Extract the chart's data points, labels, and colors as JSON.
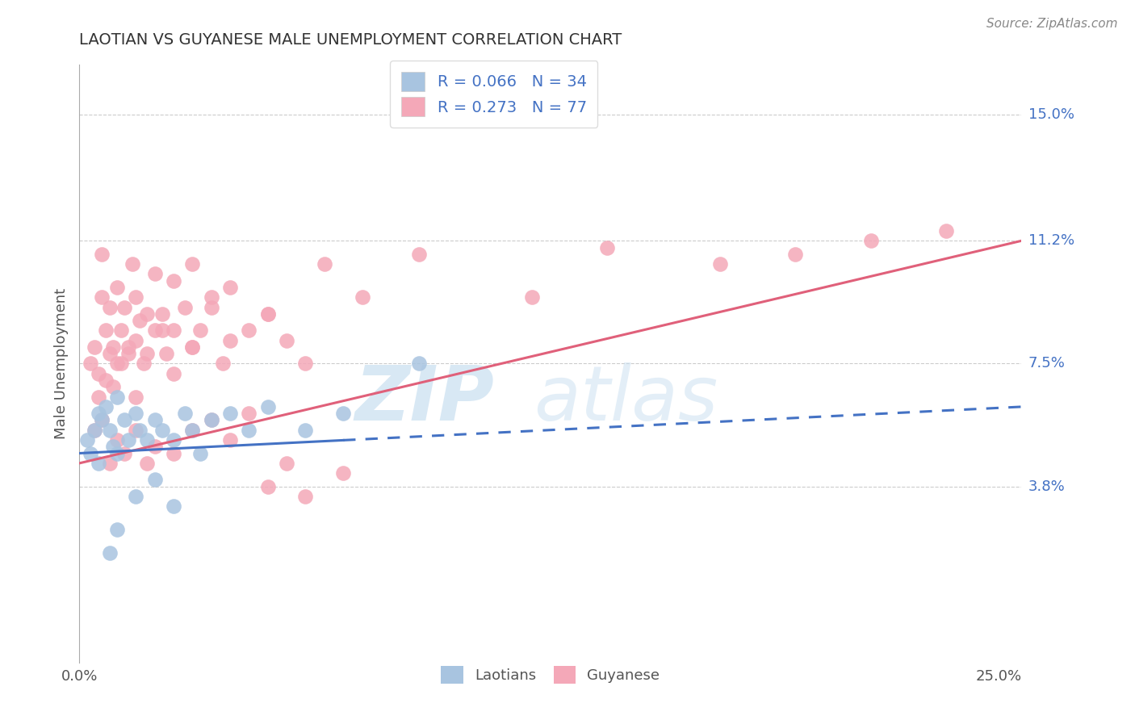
{
  "title": "LAOTIAN VS GUYANESE MALE UNEMPLOYMENT CORRELATION CHART",
  "source": "Source: ZipAtlas.com",
  "ylabel": "Male Unemployment",
  "ytick_labels": [
    "3.8%",
    "7.5%",
    "11.2%",
    "15.0%"
  ],
  "ytick_values": [
    3.8,
    7.5,
    11.2,
    15.0
  ],
  "xlim": [
    0.0,
    25.0
  ],
  "ylim": [
    -1.5,
    16.5
  ],
  "laotian_R": 0.066,
  "laotian_N": 34,
  "guyanese_R": 0.273,
  "guyanese_N": 77,
  "laotian_color": "#a8c4e0",
  "guyanese_color": "#f4a8b8",
  "laotian_line_color": "#4472c4",
  "guyanese_line_color": "#e0607a",
  "laotian_line_solid_end": 7.0,
  "guyanese_line_solid_end": 25.0,
  "laotian_line_start_y": 4.8,
  "laotian_line_end_y": 6.2,
  "guyanese_line_start_y": 4.5,
  "guyanese_line_end_y": 11.2,
  "laotian_x": [
    0.2,
    0.3,
    0.4,
    0.5,
    0.5,
    0.6,
    0.7,
    0.8,
    0.9,
    1.0,
    1.0,
    1.2,
    1.3,
    1.5,
    1.6,
    1.8,
    2.0,
    2.2,
    2.5,
    2.8,
    3.0,
    3.5,
    4.0,
    4.5,
    5.0,
    6.0,
    7.0,
    9.0,
    3.2,
    2.0,
    1.5,
    1.0,
    0.8,
    2.5
  ],
  "laotian_y": [
    5.2,
    4.8,
    5.5,
    6.0,
    4.5,
    5.8,
    6.2,
    5.5,
    5.0,
    6.5,
    4.8,
    5.8,
    5.2,
    6.0,
    5.5,
    5.2,
    5.8,
    5.5,
    5.2,
    6.0,
    5.5,
    5.8,
    6.0,
    5.5,
    6.2,
    5.5,
    6.0,
    7.5,
    4.8,
    4.0,
    3.5,
    2.5,
    1.8,
    3.2
  ],
  "guyanese_x": [
    0.3,
    0.4,
    0.5,
    0.6,
    0.6,
    0.7,
    0.8,
    0.8,
    0.9,
    1.0,
    1.0,
    1.1,
    1.2,
    1.3,
    1.4,
    1.5,
    1.5,
    1.6,
    1.7,
    1.8,
    2.0,
    2.0,
    2.2,
    2.3,
    2.5,
    2.5,
    2.8,
    3.0,
    3.0,
    3.2,
    3.5,
    3.8,
    4.0,
    4.5,
    5.0,
    5.5,
    6.0,
    0.5,
    0.7,
    0.9,
    1.1,
    1.3,
    1.5,
    1.8,
    2.2,
    2.5,
    3.0,
    3.5,
    4.0,
    5.0,
    6.5,
    7.5,
    9.0,
    12.0,
    14.0,
    17.0,
    19.0,
    21.0,
    23.0,
    0.4,
    0.6,
    0.8,
    1.0,
    1.2,
    1.5,
    1.8,
    2.0,
    2.5,
    3.0,
    3.5,
    4.0,
    4.5,
    5.0,
    5.5,
    6.0,
    7.0
  ],
  "guyanese_y": [
    7.5,
    8.0,
    7.2,
    9.5,
    10.8,
    8.5,
    7.8,
    9.2,
    8.0,
    9.8,
    7.5,
    8.5,
    9.2,
    7.8,
    10.5,
    8.2,
    9.5,
    8.8,
    7.5,
    9.0,
    8.5,
    10.2,
    9.0,
    7.8,
    8.5,
    10.0,
    9.2,
    8.0,
    10.5,
    8.5,
    9.2,
    7.5,
    9.8,
    8.5,
    9.0,
    8.2,
    7.5,
    6.5,
    7.0,
    6.8,
    7.5,
    8.0,
    6.5,
    7.8,
    8.5,
    7.2,
    8.0,
    9.5,
    8.2,
    9.0,
    10.5,
    9.5,
    10.8,
    9.5,
    11.0,
    10.5,
    10.8,
    11.2,
    11.5,
    5.5,
    5.8,
    4.5,
    5.2,
    4.8,
    5.5,
    4.5,
    5.0,
    4.8,
    5.5,
    5.8,
    5.2,
    6.0,
    3.8,
    4.5,
    3.5,
    4.2
  ]
}
